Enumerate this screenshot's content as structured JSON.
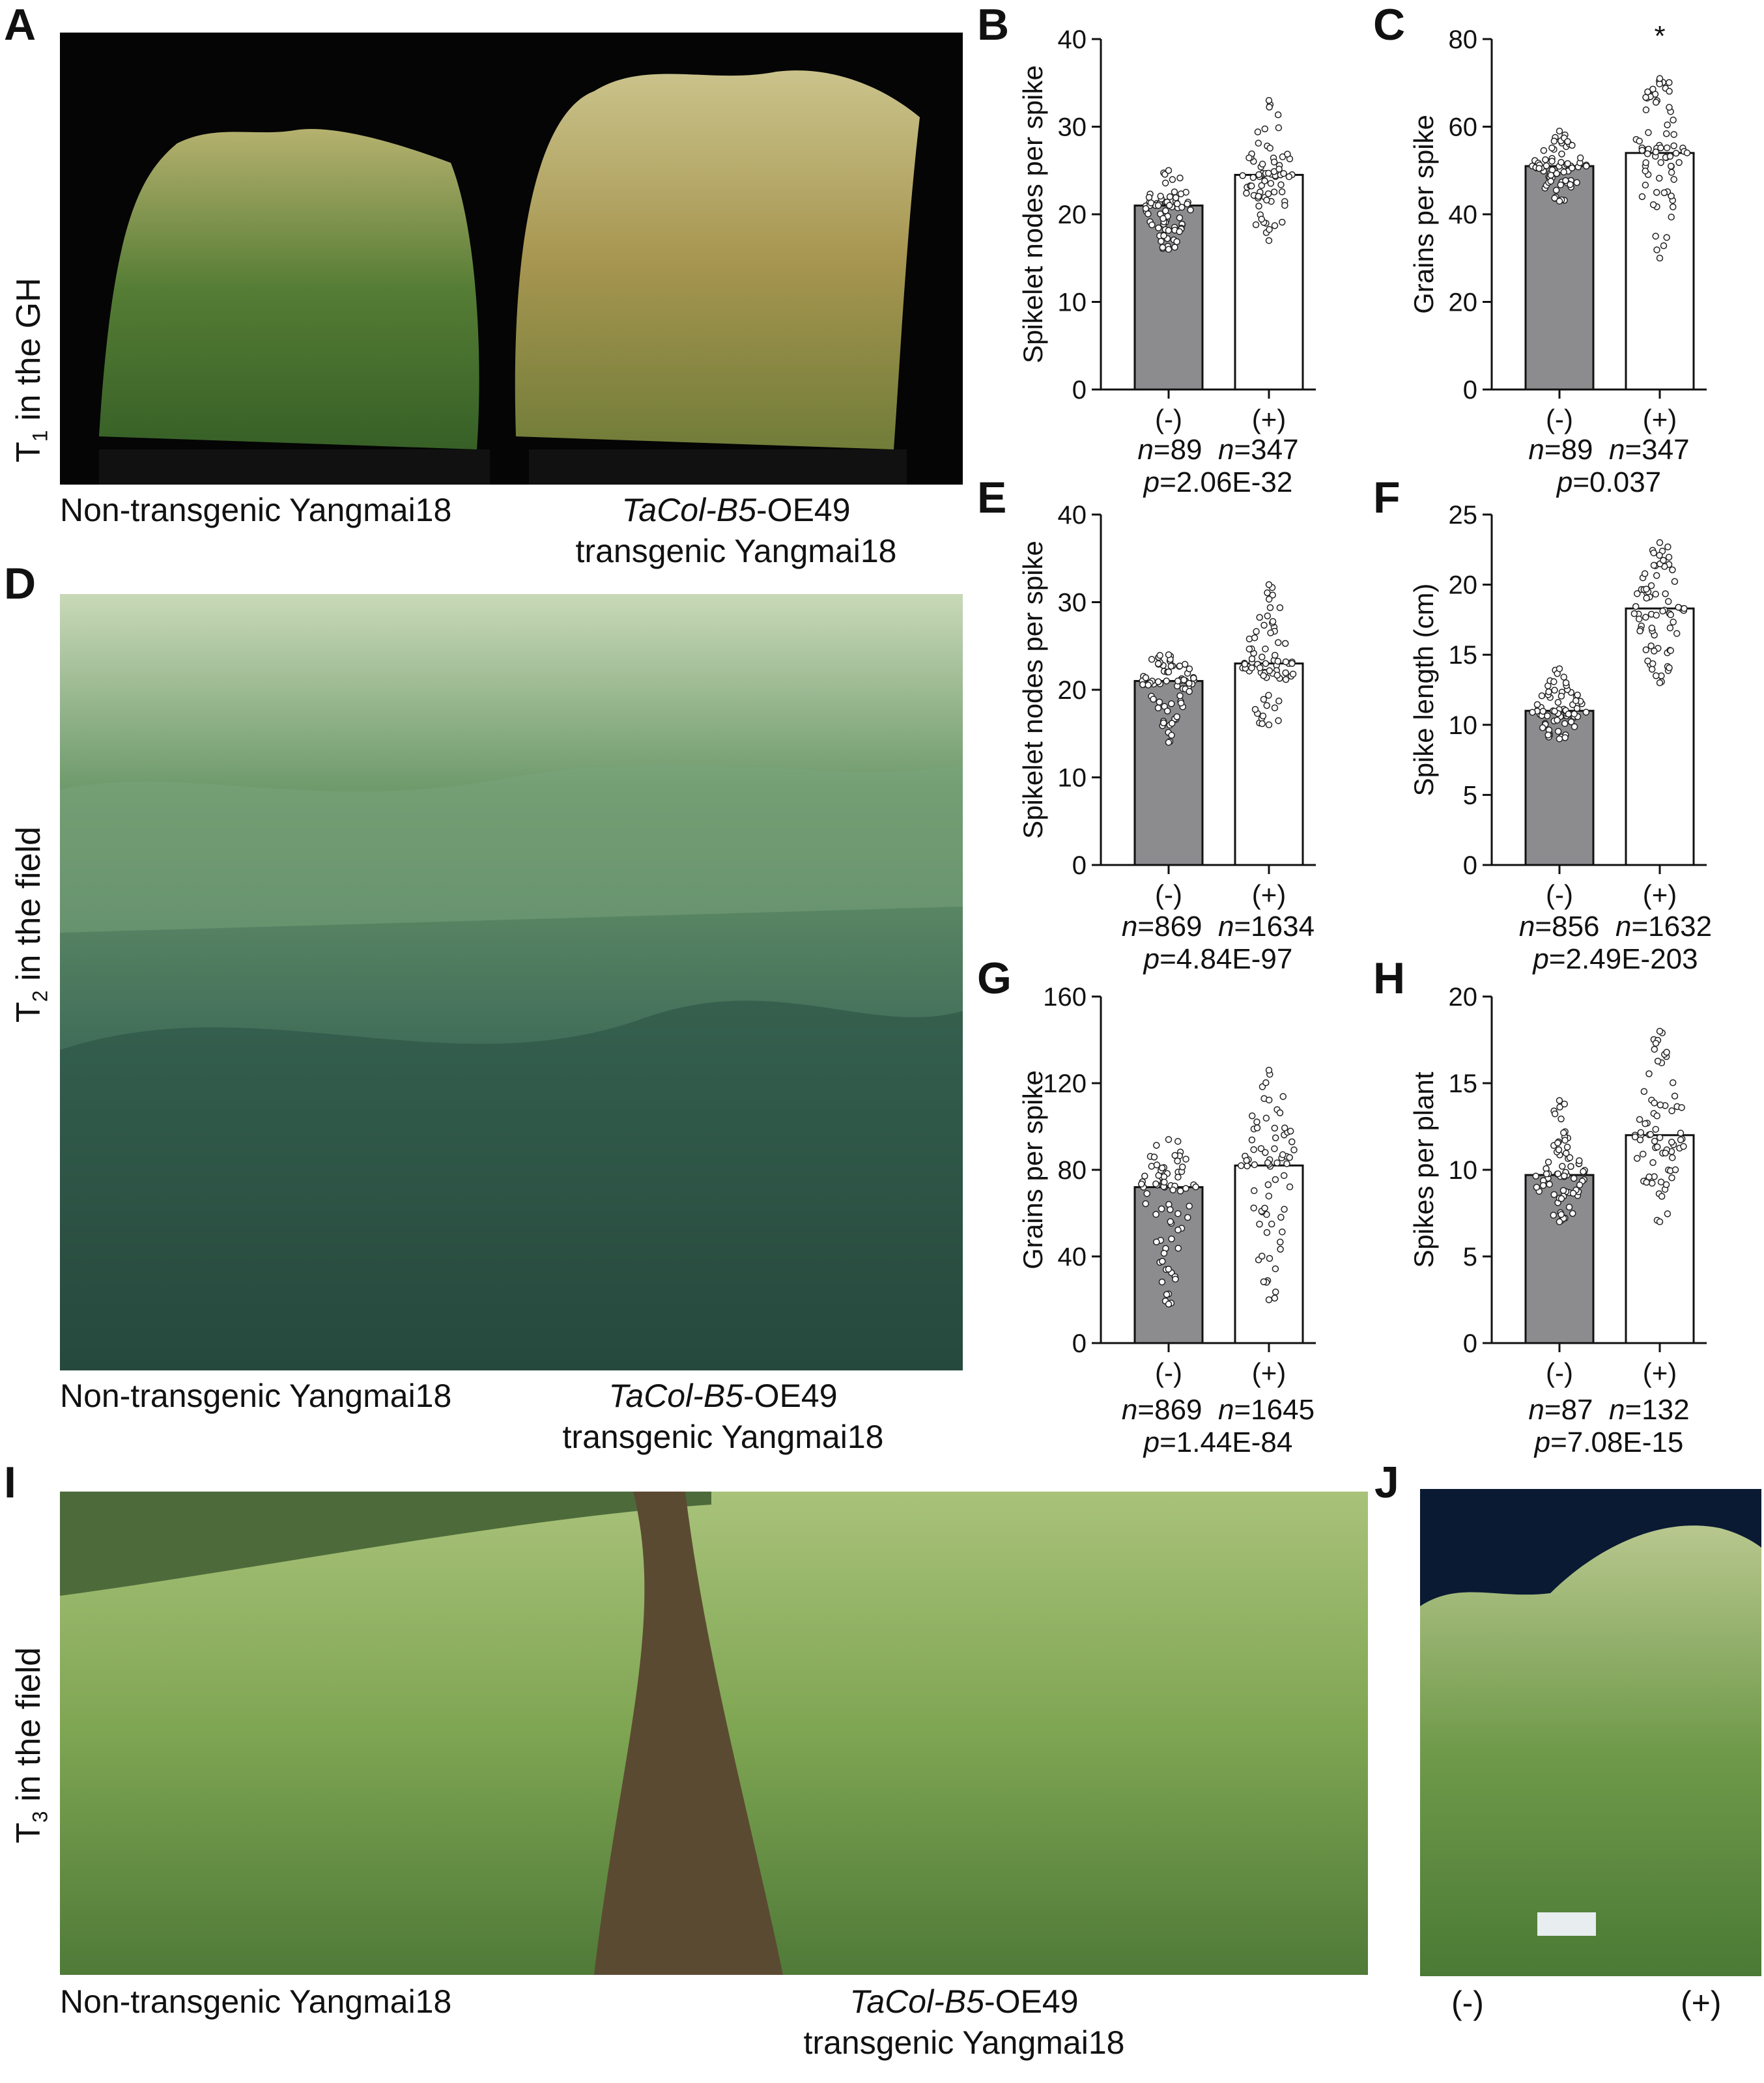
{
  "panels": {
    "A": "A",
    "B": "B",
    "C": "C",
    "D": "D",
    "E": "E",
    "F": "F",
    "G": "G",
    "H": "H",
    "I": "I",
    "J": "J"
  },
  "side_labels": {
    "t1": {
      "prefix": "T",
      "sub": "1",
      "suffix": " in the GH"
    },
    "t2": {
      "prefix": "T",
      "sub": "2",
      "suffix": " in the field"
    },
    "t3": {
      "prefix": "T",
      "sub": "3",
      "suffix": " in the field"
    }
  },
  "captions": {
    "non_transgenic": "Non-transgenic Yangmai18",
    "transgene_italic": "TaCol-B5",
    "transgene_suffix": "-OE49",
    "transgenic_line2": "transgenic Yangmai18",
    "j_minus": "(-)",
    "j_plus": "(+)"
  },
  "colors": {
    "bar_minus": "#8c8c8f",
    "bar_plus": "#ffffff",
    "axis": "#111111"
  },
  "chart_data": [
    {
      "id": "B",
      "type": "bar",
      "categories": [
        "(-)",
        "(+)"
      ],
      "values": [
        21,
        24.5
      ],
      "ylabel": "Spikelet nodes per spike",
      "ylim": [
        0,
        40
      ],
      "yticks": [
        0,
        10,
        20,
        30,
        40
      ],
      "n_text": [
        "89",
        "347"
      ],
      "p_text": "=2.06E-32",
      "asterisk": "",
      "spread": [
        [
          16,
          25
        ],
        [
          17,
          33
        ]
      ]
    },
    {
      "id": "C",
      "type": "bar",
      "categories": [
        "(-)",
        "(+)"
      ],
      "values": [
        51,
        54
      ],
      "ylabel": "Grains per spike",
      "ylim": [
        0,
        80
      ],
      "yticks": [
        0,
        20,
        40,
        60,
        80
      ],
      "n_text": [
        "89",
        "347"
      ],
      "p_text": "=0.037",
      "asterisk": "*",
      "spread": [
        [
          43,
          59
        ],
        [
          30,
          71
        ]
      ]
    },
    {
      "id": "E",
      "type": "bar",
      "categories": [
        "(-)",
        "(+)"
      ],
      "values": [
        21,
        23
      ],
      "ylabel": "Spikelet nodes per spike",
      "ylim": [
        0,
        40
      ],
      "yticks": [
        0,
        10,
        20,
        30,
        40
      ],
      "n_text": [
        "869",
        "1634"
      ],
      "p_text": "=4.84E-97",
      "asterisk": "",
      "spread": [
        [
          14,
          24
        ],
        [
          16,
          32
        ]
      ]
    },
    {
      "id": "F",
      "type": "bar",
      "categories": [
        "(-)",
        "(+)"
      ],
      "values": [
        11,
        18.3
      ],
      "ylabel": "Spike length (cm)",
      "ylim": [
        0,
        25
      ],
      "yticks": [
        0,
        5,
        10,
        15,
        20,
        25
      ],
      "n_text": [
        "856",
        "1632"
      ],
      "p_text": "=2.49E-203",
      "asterisk": "",
      "spread": [
        [
          9,
          14
        ],
        [
          13,
          23
        ]
      ]
    },
    {
      "id": "G",
      "type": "bar",
      "categories": [
        "(-)",
        "(+)"
      ],
      "values": [
        72,
        82
      ],
      "ylabel": "Grains per spike",
      "ylim": [
        0,
        160
      ],
      "yticks": [
        0,
        40,
        80,
        120,
        160
      ],
      "n_text": [
        "869",
        "1645"
      ],
      "p_text": "=1.44E-84",
      "asterisk": "",
      "spread": [
        [
          18,
          94
        ],
        [
          20,
          126
        ]
      ]
    },
    {
      "id": "H",
      "type": "bar",
      "categories": [
        "(-)",
        "(+)"
      ],
      "values": [
        9.7,
        12
      ],
      "ylabel": "Spikes per plant",
      "ylim": [
        0,
        20
      ],
      "yticks": [
        0,
        5,
        10,
        15,
        20
      ],
      "n_text": [
        "87",
        "132"
      ],
      "p_text": "=7.08E-15",
      "asterisk": "",
      "spread": [
        [
          7,
          14
        ],
        [
          7,
          18
        ]
      ]
    }
  ]
}
